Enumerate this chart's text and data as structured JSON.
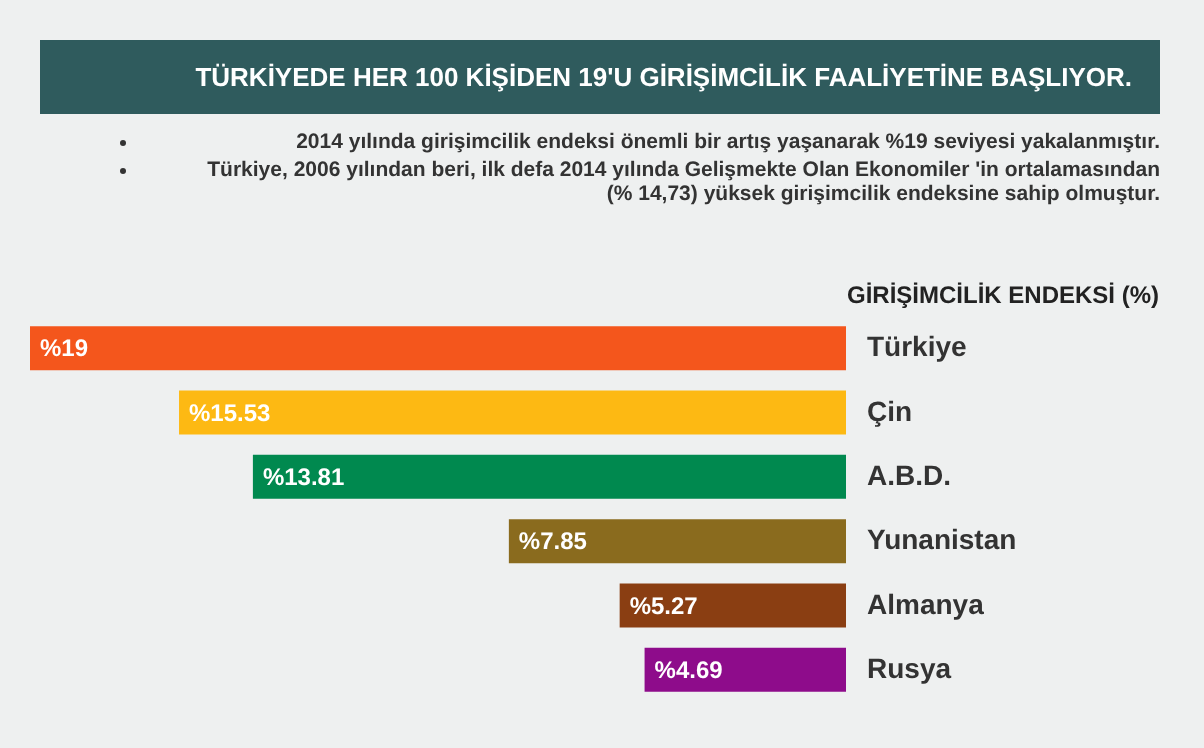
{
  "chart_data": {
    "type": "bar",
    "orientation": "horizontal",
    "title": "TÜRKİYEDE HER 100 KİŞİDEN 19'U GİRİŞİMCİLİK FAALİYETİNE BAŞLIYOR.",
    "annotations": [
      "2014 yılında girişimcilik endeksi önemli bir artış yaşanarak %19 seviyesi yakalanmıştır.",
      "Türkiye, 2006 yılından beri, ilk defa 2014 yılında Gelişmekte Olan Ekonomiler 'in ortalamasından (% 14,73)  yüksek girişimcilik endeksine sahip olmuştur."
    ],
    "xlabel": "GİRİŞİMCİLİK ENDEKSİ (%)",
    "categories": [
      "Türkiye",
      "Çin",
      "A.B.D.",
      "Yunanistan",
      "Almanya",
      "Rusya"
    ],
    "values": [
      19,
      15.53,
      13.81,
      7.85,
      5.27,
      4.69
    ],
    "value_labels": [
      "%19",
      "%15.53",
      "%13.81",
      "%7.85",
      "%5.27",
      "%4.69"
    ],
    "colors": [
      "#f4561c",
      "#fdb913",
      "#00894f",
      "#8a6b1e",
      "#8a3e12",
      "#8e0c8b"
    ],
    "tick_labels": "y"
  }
}
